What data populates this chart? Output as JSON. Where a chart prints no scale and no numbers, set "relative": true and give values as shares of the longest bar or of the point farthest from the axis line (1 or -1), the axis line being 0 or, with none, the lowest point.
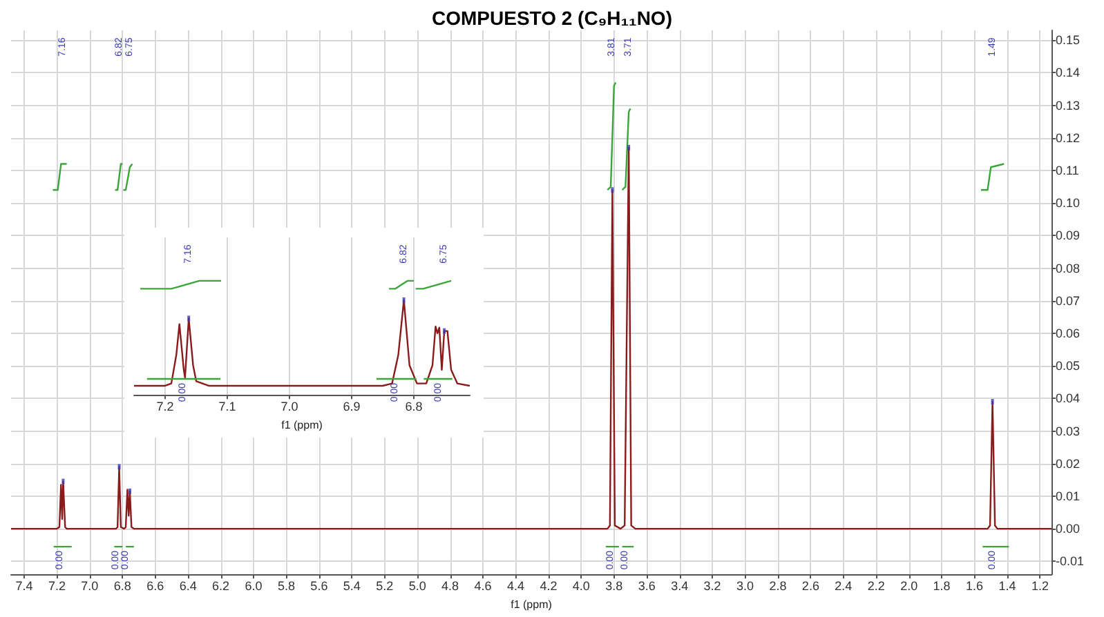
{
  "chart_data": [
    {
      "type": "line",
      "title": "COMPUESTO 2 (C₉H₁₁NO)",
      "xlabel": "f1 (ppm)",
      "xlim": [
        7.48,
        1.13
      ],
      "xticks": [
        7.4,
        7.2,
        {
          "value": 7.0,
          "label": "7.0"
        },
        6.8,
        6.6,
        6.4,
        6.2,
        {
          "value": 6.0,
          "label": "6.0"
        },
        5.8,
        5.6,
        5.4,
        5.2,
        {
          "value": 5.0,
          "label": "5.0"
        },
        4.8,
        4.6,
        4.4,
        4.2,
        {
          "value": 4.0,
          "label": "4.0"
        },
        3.8,
        3.6,
        3.4,
        3.2,
        {
          "value": 3.0,
          "label": "3.0"
        },
        2.8,
        2.6,
        2.4,
        2.2,
        {
          "value": 2.0,
          "label": "2.0"
        },
        1.8,
        1.6,
        1.4,
        1.2
      ],
      "ylim": [
        -0.014,
        0.153
      ],
      "yticks": [
        {
          "value": -0.01,
          "label": "-0.01"
        },
        {
          "value": 0,
          "label": "0.00"
        },
        0.01,
        0.02,
        0.03,
        0.04,
        0.05,
        0.06,
        0.07,
        0.08,
        0.09,
        {
          "value": 0.1,
          "label": "0.10"
        },
        0.11,
        0.12,
        0.13,
        0.14,
        0.15
      ],
      "grid": true,
      "series": [
        {
          "color": "#8b1a1a",
          "x": [
            7.48,
            7.2,
            7.185,
            7.175,
            7.168,
            7.162,
            7.15,
            7.14,
            6.84,
            6.83,
            6.82,
            6.81,
            6.79,
            6.78,
            6.77,
            6.762,
            6.755,
            6.745,
            6.73,
            3.84,
            3.825,
            3.81,
            3.795,
            3.76,
            3.735,
            3.71,
            3.695,
            3.67,
            1.52,
            1.505,
            1.49,
            1.475,
            1.46,
            1.13
          ],
          "values": [
            0,
            0,
            0.0005,
            0.0135,
            0.003,
            0.0145,
            0.0005,
            0,
            0,
            0.0005,
            0.019,
            0.0005,
            0,
            0.0005,
            0.012,
            0.004,
            0.0115,
            0.0005,
            0,
            0,
            0.001,
            0.104,
            0.001,
            0,
            0.001,
            0.117,
            0.001,
            0,
            0,
            0.001,
            0.039,
            0.001,
            0,
            0
          ]
        },
        {
          "color": "#3aa53a",
          "x": [
            7.225,
            7.195,
            7.175,
            7.14
          ],
          "values": [
            0.104,
            0.104,
            0.112,
            0.112
          ]
        },
        {
          "color": "#3aa53a",
          "x": [
            6.845,
            6.83,
            6.81,
            6.8
          ],
          "values": [
            0.104,
            0.104,
            0.112,
            0.112
          ]
        },
        {
          "color": "#3aa53a",
          "x": [
            6.795,
            6.78,
            6.755,
            6.74
          ],
          "values": [
            0.104,
            0.104,
            0.111,
            0.112
          ]
        },
        {
          "color": "#3aa53a",
          "x": [
            3.84,
            3.82,
            3.8,
            3.79
          ],
          "values": [
            0.104,
            0.105,
            0.136,
            0.137
          ]
        },
        {
          "color": "#3aa53a",
          "x": [
            3.75,
            3.73,
            3.71,
            3.7
          ],
          "values": [
            0.104,
            0.105,
            0.128,
            0.129
          ]
        },
        {
          "color": "#3aa53a",
          "x": [
            1.56,
            1.52,
            1.5,
            1.42
          ],
          "values": [
            0.104,
            0.104,
            0.111,
            0.112
          ]
        },
        {
          "color": "#3aa53a",
          "x": [
            7.22,
            7.11
          ],
          "values": [
            -0.0055,
            -0.0055
          ]
        },
        {
          "color": "#3aa53a",
          "x": [
            6.85,
            6.8
          ],
          "values": [
            -0.0055,
            -0.0055
          ]
        },
        {
          "color": "#3aa53a",
          "x": [
            6.78,
            6.73
          ],
          "values": [
            -0.0055,
            -0.0055
          ]
        },
        {
          "color": "#3aa53a",
          "x": [
            3.85,
            3.77
          ],
          "values": [
            -0.0055,
            -0.0055
          ]
        },
        {
          "color": "#3aa53a",
          "x": [
            3.75,
            3.68
          ],
          "values": [
            -0.0055,
            -0.0055
          ]
        },
        {
          "type": "scatter",
          "marker": "square",
          "color": "#3b3bb0",
          "x": [
            7.162,
            6.82,
            6.755,
            3.81,
            3.71,
            1.49
          ],
          "values": [
            0.0145,
            0.019,
            0.0115,
            0.104,
            0.117,
            0.039
          ]
        },
        {
          "color": "#3aa53a",
          "x": [
            1.55,
            1.39
          ],
          "values": [
            -0.0055,
            -0.0055
          ]
        }
      ],
      "annotations": [
        "7.16",
        "6.82",
        "6.75",
        "3.81",
        "3.71",
        "1.49",
        {
          "text": "0.00",
          "x": 7.18,
          "y": -0.0055
        },
        {
          "text": "0.00",
          "x": 6.84,
          "y": -0.0055
        },
        {
          "text": "0.00",
          "x": 6.78,
          "y": -0.0055
        },
        {
          "text": "0.00",
          "x": 3.82,
          "y": -0.0055
        },
        {
          "text": "0.00",
          "x": 3.73,
          "y": -0.0055
        },
        {
          "text": "0.00",
          "x": 1.49,
          "y": -0.0055
        }
      ]
    },
    {
      "type": "line",
      "xlabel": "f1 (ppm)",
      "relative": true,
      "xlim": [
        7.25,
        6.71
      ],
      "xticks": [
        7.2,
        7.1,
        {
          "value": 7.0,
          "label": "7.0"
        },
        6.9,
        6.8
      ],
      "grid": "x",
      "tick_labels": "x",
      "series": [
        {
          "color": "#8b1a1a",
          "x": [
            7.25,
            7.2,
            7.19,
            7.182,
            7.177,
            7.17,
            7.168,
            7.162,
            7.155,
            7.15,
            7.13,
            6.85,
            6.835,
            6.825,
            6.816,
            6.807,
            6.795,
            6.78,
            6.77,
            6.765,
            6.762,
            6.759,
            6.755,
            6.751,
            6.746,
            6.74,
            6.73,
            6.71
          ],
          "values": [
            0.08,
            0.08,
            0.1,
            0.35,
            0.62,
            0.22,
            0.15,
            0.67,
            0.26,
            0.12,
            0.08,
            0.08,
            0.1,
            0.35,
            0.83,
            0.26,
            0.1,
            0.1,
            0.26,
            0.6,
            0.54,
            0.59,
            0.22,
            0.56,
            0.56,
            0.22,
            0.1,
            0.08
          ]
        },
        {
          "color": "#3aa53a",
          "x": [
            7.24,
            7.19,
            7.145,
            7.11
          ],
          "values": [
            0.93,
            0.93,
            1,
            1
          ]
        },
        {
          "color": "#3aa53a",
          "x": [
            6.84,
            6.83,
            6.81,
            6.8
          ],
          "values": [
            0.93,
            0.93,
            1,
            1
          ]
        },
        {
          "color": "#3aa53a",
          "x": [
            6.797,
            6.785,
            6.74
          ],
          "values": [
            0.93,
            0.93,
            1
          ]
        },
        {
          "color": "#3aa53a",
          "x": [
            7.229,
            7.111
          ],
          "values": [
            0.14,
            0.14
          ]
        },
        {
          "color": "#3aa53a",
          "x": [
            6.86,
            6.796
          ],
          "values": [
            0.14,
            0.14
          ]
        },
        {
          "color": "#3aa53a",
          "x": [
            6.784,
            6.738
          ],
          "values": [
            0.14,
            0.14
          ]
        },
        {
          "type": "scatter",
          "marker": "square",
          "color": "#3b3bb0",
          "x": [
            7.162,
            6.816,
            6.751
          ],
          "values": [
            0.67,
            0.83,
            0.56
          ]
        }
      ],
      "annotations": [
        "7.16",
        "6.82",
        "6.75",
        {
          "text": "0.00",
          "x": 7.171,
          "y": 0.14
        },
        {
          "text": "0.00",
          "x": 6.83,
          "y": 0.14
        },
        {
          "text": "0.00",
          "x": 6.76,
          "y": 0.14
        }
      ]
    }
  ]
}
